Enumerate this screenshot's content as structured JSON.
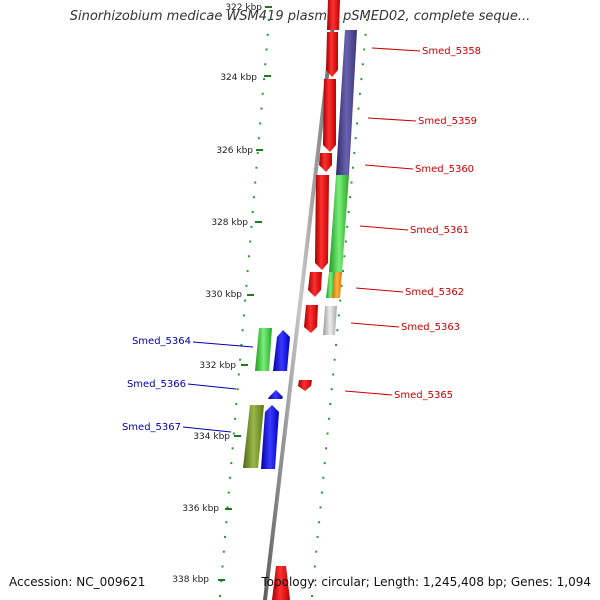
{
  "title": "Sinorhizobium medicae WSM419 plasmid pSMED02, complete seque...",
  "footer": {
    "accession": "Accession: NC_009621",
    "topology": "Topology: circular; Length: 1,245,408 bp; Genes: 1,094"
  },
  "colors": {
    "backbone": "#8a8a8a",
    "tick": "#1e7a1e",
    "tick_dot": "#2a9a2a",
    "label_right": "#cc0000",
    "label_left": "#0000b0",
    "red": "#ee0000",
    "navy": "#4c4490",
    "green": "#3cc83c",
    "orange": "#ff8c00",
    "gray": "#c8c8c8",
    "blue": "#0000ee",
    "olive": "#6b8a22"
  },
  "map": {
    "kbp_ticks": [
      "322 kbp",
      "324 kbp",
      "326 kbp",
      "328 kbp",
      "330 kbp",
      "332 kbp",
      "334 kbp",
      "336 kbp",
      "338 kbp"
    ],
    "right_labels": [
      "Smed_5358",
      "Smed_5359",
      "Smed_5360",
      "Smed_5361",
      "Smed_5362",
      "Smed_5363",
      "Smed_5365"
    ],
    "left_labels": [
      "Smed_5364",
      "Smed_5366",
      "Smed_5367"
    ]
  }
}
